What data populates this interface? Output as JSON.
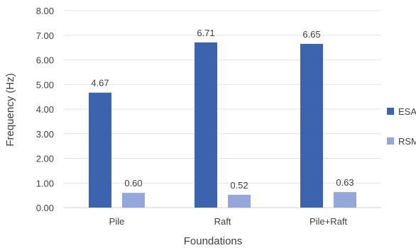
{
  "chart_data": {
    "type": "bar",
    "categories": [
      "Pile",
      "Raft",
      "Pile+Raft"
    ],
    "series": [
      {
        "name": "ESA",
        "values": [
          4.67,
          6.71,
          6.65
        ],
        "labels": [
          "4.67",
          "6.71",
          "6.65"
        ],
        "color": "#3c63ad"
      },
      {
        "name": "RSM",
        "values": [
          0.6,
          0.52,
          0.63
        ],
        "labels": [
          "0.60",
          "0.52",
          "0.63"
        ],
        "color": "#93a8d8"
      }
    ],
    "yticks": [
      "0.00",
      "1.00",
      "2.00",
      "3.00",
      "4.00",
      "5.00",
      "6.00",
      "7.00",
      "8.00"
    ],
    "ylim": [
      0,
      8
    ],
    "xlabel": "Foundations",
    "ylabel": "Frequency  (Hz)",
    "grid": true,
    "legend_position": "right"
  }
}
